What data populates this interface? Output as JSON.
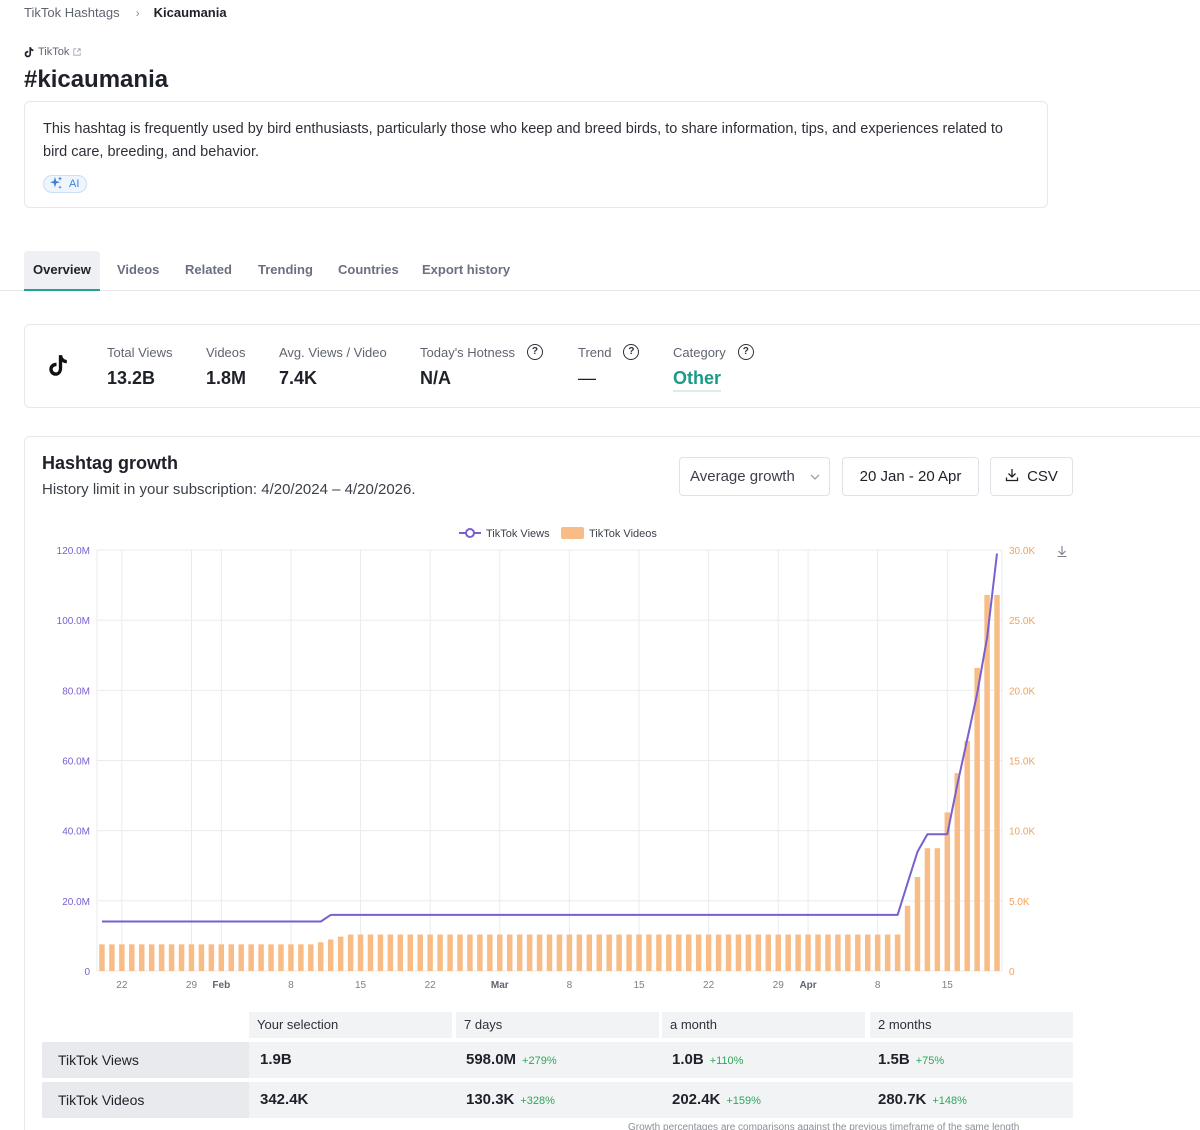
{
  "breadcrumb": {
    "root": "TikTok Hashtags",
    "current": "Kicaumania"
  },
  "platform": {
    "label": "TikTok",
    "icon": "tiktok-icon"
  },
  "hashtag": {
    "title": "#kicaumania"
  },
  "description": {
    "text": "This hashtag is frequently used by bird enthusiasts, particularly those who keep and breed birds, to share information, tips, and experiences related to bird care, breeding, and behavior.",
    "badge": "AI"
  },
  "tabs": [
    "Overview",
    "Videos",
    "Related",
    "Trending",
    "Countries",
    "Export history"
  ],
  "active_tab": "Overview",
  "stats": {
    "total_views": {
      "label": "Total Views",
      "value": "13.2B"
    },
    "videos": {
      "label": "Videos",
      "value": "1.8M"
    },
    "avg_views": {
      "label": "Avg. Views / Video",
      "value": "7.4K"
    },
    "hotness": {
      "label": "Today's Hotness",
      "value": "N/A"
    },
    "trend": {
      "label": "Trend",
      "value": "—"
    },
    "category": {
      "label": "Category",
      "value": "Other"
    }
  },
  "growth": {
    "title": "Hashtag growth",
    "subtitle": "History limit in your subscription: 4/20/2024 – 4/20/2026.",
    "select_value": "Average growth",
    "date_range": "20 Jan - 20 Apr",
    "csv_label": "CSV"
  },
  "colors": {
    "accent": "#1a9a88",
    "views_line": "#7a5fd1",
    "videos_bar": "#f8bd86",
    "positive": "#2ea65a"
  },
  "chart_data": {
    "type": "bar+line",
    "legend": [
      "TikTok Views",
      "TikTok Videos"
    ],
    "left_axis": {
      "series": "TikTok Views",
      "ticks": [
        "0",
        "20.0M",
        "40.0M",
        "60.0M",
        "80.0M",
        "100.0M",
        "120.0M"
      ],
      "ylim": [
        0,
        120000000
      ]
    },
    "right_axis": {
      "series": "TikTok Videos",
      "ticks": [
        "0",
        "5.0K",
        "10.0K",
        "15.0K",
        "20.0K",
        "25.0K",
        "30.0K"
      ],
      "ylim": [
        0,
        30000
      ]
    },
    "x_ticks": [
      {
        "label": "22",
        "day": 2,
        "bold": false
      },
      {
        "label": "29",
        "day": 9,
        "bold": false
      },
      {
        "label": "Feb",
        "day": 12,
        "bold": true
      },
      {
        "label": "8",
        "day": 19,
        "bold": false
      },
      {
        "label": "15",
        "day": 26,
        "bold": false
      },
      {
        "label": "22",
        "day": 33,
        "bold": false
      },
      {
        "label": "Mar",
        "day": 40,
        "bold": true
      },
      {
        "label": "8",
        "day": 47,
        "bold": false
      },
      {
        "label": "15",
        "day": 54,
        "bold": false
      },
      {
        "label": "22",
        "day": 61,
        "bold": false
      },
      {
        "label": "29",
        "day": 68,
        "bold": false
      },
      {
        "label": "Apr",
        "day": 71,
        "bold": true
      },
      {
        "label": "8",
        "day": 78,
        "bold": false
      },
      {
        "label": "15",
        "day": 85,
        "bold": false
      }
    ],
    "days": 91,
    "series": [
      {
        "name": "TikTok Views",
        "type": "line",
        "values": [
          14100000,
          14100000,
          14100000,
          14100000,
          14100000,
          14100000,
          14100000,
          14100000,
          14100000,
          14100000,
          14100000,
          14100000,
          14100000,
          14100000,
          14100000,
          14100000,
          14100000,
          14100000,
          14100000,
          14100000,
          14100000,
          14100000,
          14100000,
          16000000,
          16000000,
          16000000,
          16000000,
          16000000,
          16000000,
          16000000,
          16000000,
          16000000,
          16000000,
          16000000,
          16000000,
          16000000,
          16000000,
          16000000,
          16000000,
          16000000,
          16000000,
          16000000,
          16000000,
          16000000,
          16000000,
          16000000,
          16000000,
          16000000,
          16000000,
          16000000,
          16000000,
          16000000,
          16000000,
          16000000,
          16000000,
          16000000,
          16000000,
          16000000,
          16000000,
          16000000,
          16000000,
          16000000,
          16000000,
          16000000,
          16000000,
          16000000,
          16000000,
          16000000,
          16000000,
          16000000,
          16000000,
          16000000,
          16000000,
          16000000,
          16000000,
          16000000,
          16000000,
          16000000,
          16000000,
          16000000,
          16000000,
          25000000,
          34000000,
          39000000,
          39000000,
          39000000,
          53000000,
          66000000,
          79000000,
          95000000,
          119000000
        ]
      },
      {
        "name": "TikTok Videos",
        "type": "bar",
        "values": [
          1900,
          1900,
          1900,
          1900,
          1900,
          1900,
          1900,
          1900,
          1900,
          1900,
          1900,
          1900,
          1900,
          1900,
          1900,
          1900,
          1900,
          1900,
          1900,
          1900,
          1900,
          1900,
          2050,
          2250,
          2450,
          2600,
          2600,
          2600,
          2600,
          2600,
          2600,
          2600,
          2600,
          2600,
          2600,
          2600,
          2600,
          2600,
          2600,
          2600,
          2600,
          2600,
          2600,
          2600,
          2600,
          2600,
          2600,
          2600,
          2600,
          2600,
          2600,
          2600,
          2600,
          2600,
          2600,
          2600,
          2600,
          2600,
          2600,
          2600,
          2600,
          2600,
          2600,
          2600,
          2600,
          2600,
          2600,
          2600,
          2600,
          2600,
          2600,
          2600,
          2600,
          2600,
          2600,
          2600,
          2600,
          2600,
          2600,
          2600,
          2600,
          4650,
          6700,
          8750,
          8750,
          11300,
          14100,
          16400,
          21600,
          26800,
          26800
        ]
      }
    ]
  },
  "summary_table": {
    "columns": [
      "Your selection",
      "7 days",
      "a month",
      "2 months"
    ],
    "rows": [
      {
        "label": "TikTok Views",
        "cells": [
          {
            "value": "1.9B",
            "pct": ""
          },
          {
            "value": "598.0M",
            "pct": "+279%"
          },
          {
            "value": "1.0B",
            "pct": "+110%"
          },
          {
            "value": "1.5B",
            "pct": "+75%"
          }
        ]
      },
      {
        "label": "TikTok Videos",
        "cells": [
          {
            "value": "342.4K",
            "pct": ""
          },
          {
            "value": "130.3K",
            "pct": "+328%"
          },
          {
            "value": "202.4K",
            "pct": "+159%"
          },
          {
            "value": "280.7K",
            "pct": "+148%"
          }
        ]
      }
    ],
    "note": "Growth percentages are comparisons against the previous timeframe of the same length"
  }
}
